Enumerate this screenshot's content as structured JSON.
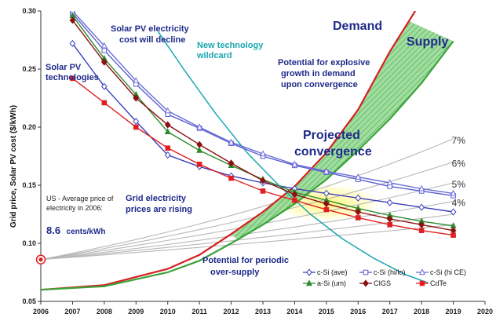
{
  "chart_data": {
    "type": "line",
    "ylabel": "Grid price, Solar PV cost  ($/kWh)",
    "xlim": [
      2006,
      2020
    ],
    "ylim": [
      0.05,
      0.3
    ],
    "x_ticks": [
      "2006",
      "2007",
      "2008",
      "2009",
      "2010",
      "2011",
      "2012",
      "2013",
      "2014",
      "2015",
      "2016",
      "2017",
      "2018",
      "2019",
      "2020"
    ],
    "y_ticks": [
      "0.05",
      "0.10",
      "0.15",
      "0.20",
      "0.25",
      "0.30"
    ],
    "pv_series": [
      {
        "name": "c-Si (ave)",
        "color": "#3b3fbf",
        "marker": "diamond-open",
        "x": [
          2007,
          2008,
          2009,
          2010,
          2011,
          2012,
          2013,
          2014,
          2015,
          2016,
          2017,
          2018,
          2019
        ],
        "y": [
          0.272,
          0.235,
          0.205,
          0.176,
          0.166,
          0.158,
          0.152,
          0.147,
          0.143,
          0.139,
          0.135,
          0.131,
          0.127
        ]
      },
      {
        "name": "c-Si (hi/lo)",
        "color": "#5a5ed0",
        "marker": "square-open",
        "x": [
          2007,
          2008,
          2009,
          2010,
          2011,
          2012,
          2013,
          2014,
          2015,
          2016,
          2017,
          2018,
          2019
        ],
        "y": [
          0.298,
          0.266,
          0.237,
          0.211,
          0.199,
          0.186,
          0.175,
          0.167,
          0.161,
          0.155,
          0.149,
          0.145,
          0.141
        ]
      },
      {
        "name": "c-Si (hi CE)",
        "color": "#6a6ed8",
        "marker": "triangle-open",
        "x": [
          2007,
          2008,
          2009,
          2010,
          2011,
          2012,
          2013,
          2014,
          2015,
          2016,
          2017,
          2018,
          2019
        ],
        "y": [
          0.3,
          0.27,
          0.24,
          0.214,
          0.2,
          0.187,
          0.177,
          0.168,
          0.162,
          0.157,
          0.152,
          0.147,
          0.143
        ]
      },
      {
        "name": "a-Si (um)",
        "color": "#2f8a2f",
        "marker": "triangle",
        "x": [
          2007,
          2008,
          2009,
          2010,
          2011,
          2012,
          2013,
          2014,
          2015,
          2016,
          2017,
          2018,
          2019
        ],
        "y": [
          0.296,
          0.259,
          0.228,
          0.196,
          0.18,
          0.167,
          0.155,
          0.144,
          0.137,
          0.13,
          0.124,
          0.119,
          0.115
        ]
      },
      {
        "name": "CIGS",
        "color": "#8b1010",
        "marker": "diamond",
        "x": [
          2007,
          2008,
          2009,
          2010,
          2011,
          2012,
          2013,
          2014,
          2015,
          2016,
          2017,
          2018,
          2019
        ],
        "y": [
          0.292,
          0.256,
          0.225,
          0.202,
          0.185,
          0.169,
          0.154,
          0.142,
          0.134,
          0.127,
          0.121,
          0.116,
          0.111
        ]
      },
      {
        "name": "CdTe",
        "color": "#e02020",
        "marker": "square",
        "x": [
          2007,
          2008,
          2009,
          2010,
          2011,
          2012,
          2013,
          2014,
          2015,
          2016,
          2017,
          2018,
          2019
        ],
        "y": [
          0.242,
          0.221,
          0.2,
          0.182,
          0.168,
          0.156,
          0.145,
          0.137,
          0.129,
          0.122,
          0.116,
          0.111,
          0.107
        ]
      }
    ],
    "grid_growth_lines": [
      {
        "label": "7%",
        "y_start": 0.086,
        "y_end": 0.19
      },
      {
        "label": "6%",
        "y_start": 0.086,
        "y_end": 0.17
      },
      {
        "label": "5%",
        "y_start": 0.086,
        "y_end": 0.152
      },
      {
        "label": "4%",
        "y_start": 0.086,
        "y_end": 0.136
      },
      {
        "label": "",
        "y_start": 0.086,
        "y_end": 0.125
      },
      {
        "label": "",
        "y_start": 0.086,
        "y_end": 0.116
      }
    ],
    "grid_start_point": {
      "x": 2006,
      "y": 0.086
    },
    "demand_curve": {
      "name": "Demand",
      "color": "#d42020",
      "x": [
        2006,
        2008,
        2010,
        2011,
        2012,
        2013,
        2014,
        2015,
        2016,
        2017,
        2017.8
      ],
      "y": [
        0.06,
        0.064,
        0.078,
        0.09,
        0.108,
        0.127,
        0.149,
        0.178,
        0.215,
        0.265,
        0.3
      ]
    },
    "supply_curve": {
      "name": "Supply",
      "color": "#3aa33a",
      "x": [
        2006,
        2008,
        2010,
        2011,
        2012,
        2013,
        2014,
        2015,
        2016,
        2017,
        2018,
        2019
      ],
      "y": [
        0.06,
        0.063,
        0.075,
        0.085,
        0.1,
        0.116,
        0.134,
        0.155,
        0.18,
        0.207,
        0.238,
        0.274
      ]
    },
    "tech_wildcard": {
      "color": "#1aa6b0",
      "x": [
        2009.7,
        2010.5,
        2011.5,
        2012.5,
        2013.5,
        2014.5,
        2015.5,
        2016.5,
        2017.5,
        2018.2
      ],
      "y": [
        0.282,
        0.25,
        0.212,
        0.178,
        0.15,
        0.125,
        0.104,
        0.087,
        0.073,
        0.066
      ]
    },
    "annotations": {
      "solar_pv_tech": [
        "Solar PV",
        "technologies"
      ],
      "pv_cost_decline": [
        "Solar PV electricity",
        "cost will decline"
      ],
      "new_tech": [
        "New technology",
        "wildcard"
      ],
      "demand": "Demand",
      "supply": "Supply",
      "explosive": [
        "Potential for explosive",
        "growth in demand",
        "upon convergence"
      ],
      "projected": [
        "Projected",
        "convergence"
      ],
      "us_avg": [
        "US - Average price of",
        "electricity in 2006:"
      ],
      "us_value": "8.6",
      "us_unit": "cents/kWh",
      "grid_rising": [
        "Grid electricity",
        "prices are rising"
      ],
      "oversupply": [
        "Potential for periodic",
        "over-supply"
      ]
    },
    "legend_position": "bottom-right"
  },
  "colors": {
    "convergence_zone": "#fff59a",
    "gap_fill": "#7fd07f",
    "growth_line": "#b8b8b8"
  }
}
